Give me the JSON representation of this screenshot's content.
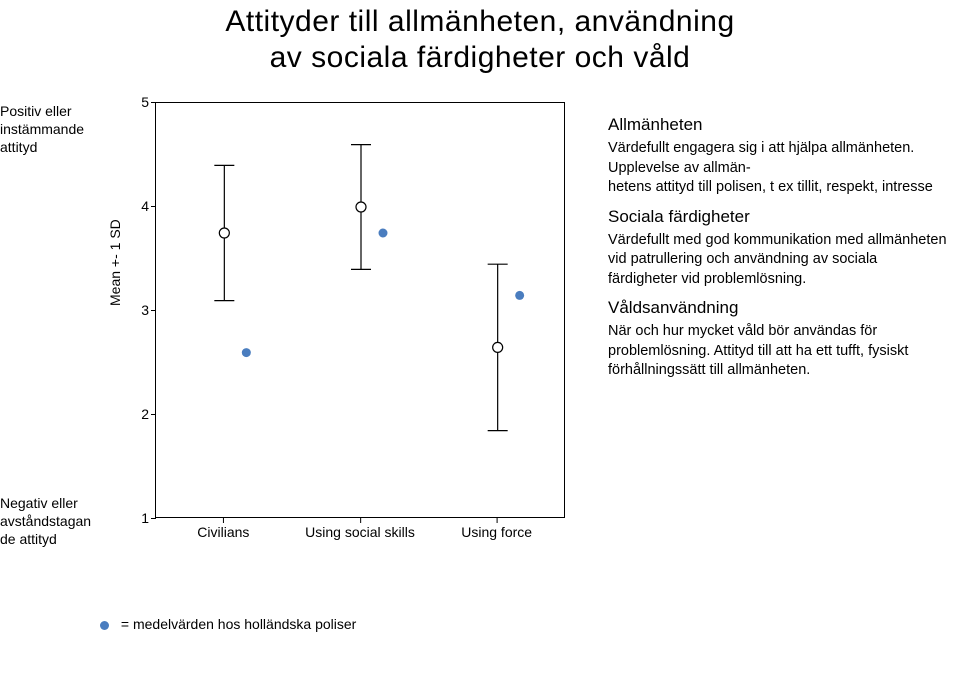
{
  "title_line1": "Attityder till allmänheten, användning",
  "title_line2": "av sociala färdigheter och våld",
  "left_label_top": "Positiv eller\ninstämmande\nattityd",
  "left_label_bottom": "Negativ eller\navståndstagan\nde attityd",
  "ylabel": "Mean +- 1 SD",
  "chart": {
    "type": "error-bar-scatter",
    "background": "#ffffff",
    "border_color": "#000000",
    "ylim": [
      1,
      5
    ],
    "yticks": [
      1,
      2,
      3,
      4,
      5
    ],
    "categories": [
      "Civilians",
      "Using social skills",
      "Using force"
    ],
    "series": [
      {
        "i": 0,
        "mean": 3.75,
        "lo": 3.1,
        "hi": 4.4
      },
      {
        "i": 1,
        "mean": 4.0,
        "lo": 3.4,
        "hi": 4.6
      },
      {
        "i": 2,
        "mean": 2.65,
        "lo": 1.85,
        "hi": 3.45
      }
    ],
    "ref_points": [
      {
        "i": 0,
        "y": 2.6
      },
      {
        "i": 1,
        "y": 3.75
      },
      {
        "i": 2,
        "y": 3.15
      }
    ],
    "whisker_color": "#000000",
    "marker_fill": "#ffffff",
    "marker_stroke": "#000000",
    "ref_marker_color": "#4a7dbf"
  },
  "explain": {
    "h1": "Allmänheten",
    "p1a": "Värdefullt engagera sig i att hjälpa allmänheten.",
    "p1b": "Upplevelse av allmän-\nhetens attityd till polisen, t ex tillit, respekt, intresse",
    "h2": "Sociala färdigheter",
    "p2": "Värdefullt med god kommunikation med allmänheten vid patrullering och användning av sociala färdigheter vid problemlösning.",
    "h3": "Våldsanvändning",
    "p3": "När och hur mycket våld bör användas för problemlösning. Attityd till att ha ett tufft, fysiskt förhållningssätt till allmänheten."
  },
  "legend": {
    "dot_color": "#4a7dbf",
    "text": "= medelvärden hos holländska poliser"
  }
}
